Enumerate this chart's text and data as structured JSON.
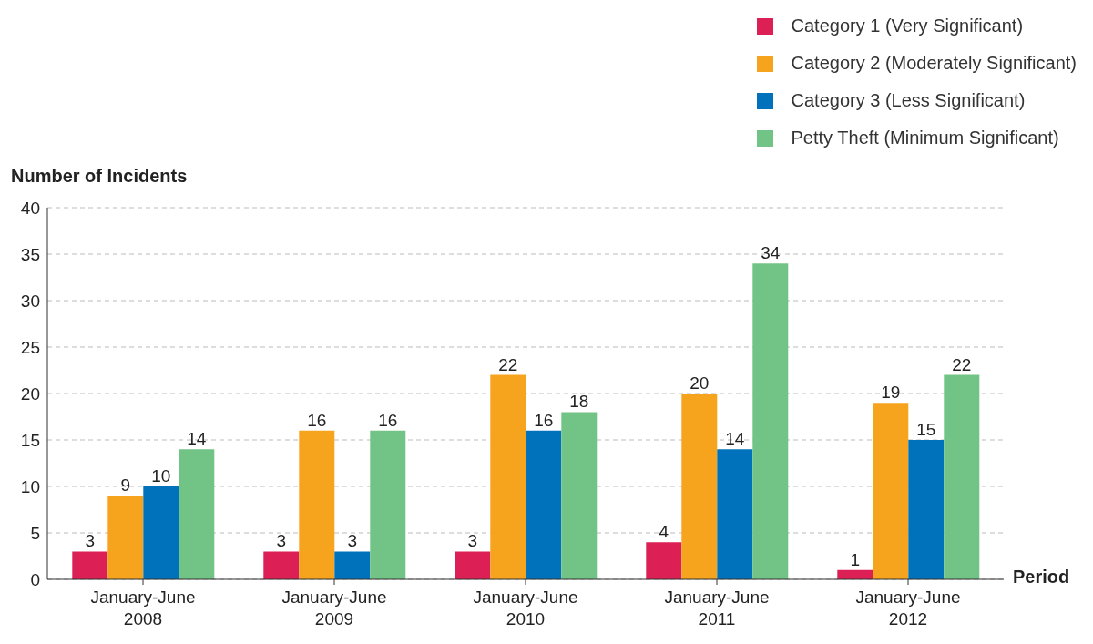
{
  "chart_data": {
    "type": "bar",
    "ylabel": "Number of Incidents",
    "xlabel": "Period",
    "categories": [
      "January-June 2008",
      "January-June 2009",
      "January-June 2010",
      "January-June 2011",
      "January-June 2012"
    ],
    "series": [
      {
        "name": "Category 1 (Very Significant)",
        "color": "#dc1f55",
        "values": [
          3,
          3,
          3,
          4,
          1
        ]
      },
      {
        "name": "Category 2 (Moderately Significant)",
        "color": "#f6a31d",
        "values": [
          9,
          16,
          22,
          20,
          19
        ]
      },
      {
        "name": "Category 3 (Less Significant)",
        "color": "#0072bc",
        "values": [
          10,
          3,
          16,
          14,
          15
        ]
      },
      {
        "name": "Petty Theft (Minimum Significant)",
        "color": "#72c386",
        "values": [
          14,
          16,
          18,
          34,
          22
        ]
      }
    ],
    "ylim": [
      0,
      40
    ],
    "yticks": [
      0,
      5,
      10,
      15,
      20,
      25,
      30,
      35,
      40
    ],
    "grid": "y",
    "legend": "top right",
    "data_labels": true
  }
}
